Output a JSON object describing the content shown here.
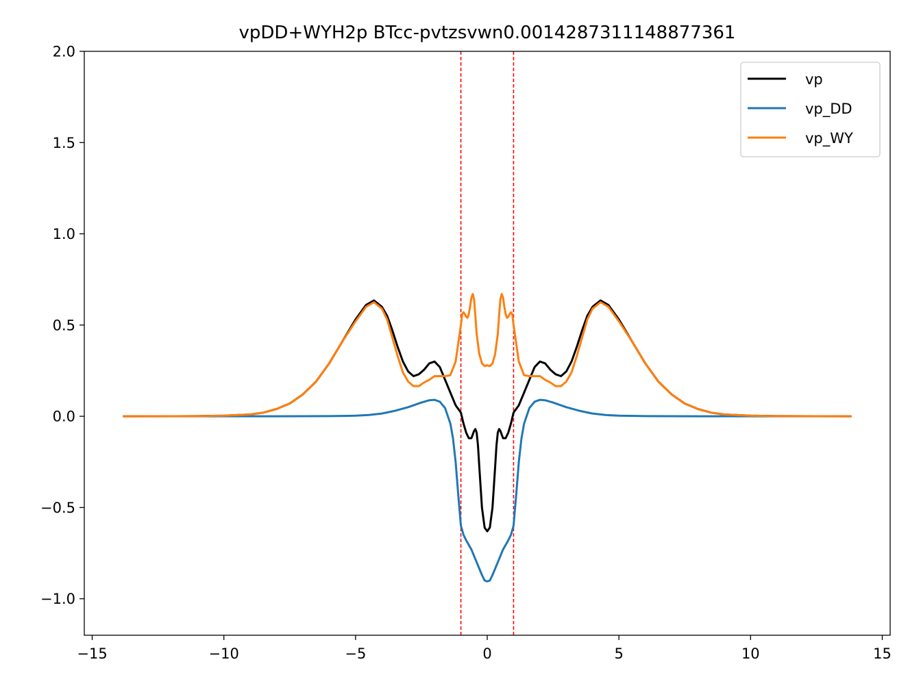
{
  "chart_data": {
    "type": "line",
    "title": "vpDD+WYH2p BTcc-pvtzsvwn0.0014287311148877361",
    "xlabel": "",
    "ylabel": "",
    "xlim": [
      -15.3,
      15.3
    ],
    "ylim": [
      -1.2,
      2.0
    ],
    "xticks": [
      -15,
      -10,
      -5,
      0,
      5,
      10,
      15
    ],
    "xtick_labels": [
      "−15",
      "−10",
      "−5",
      "0",
      "5",
      "10",
      "15"
    ],
    "yticks": [
      -1.0,
      -0.5,
      0.0,
      0.5,
      1.0,
      1.5,
      2.0
    ],
    "ytick_labels": [
      "−1.0",
      "−0.5",
      "0.0",
      "0.5",
      "1.0",
      "1.5",
      "2.0"
    ],
    "grid": false,
    "legend_position": "top-right",
    "vlines": [
      {
        "x": -1.0,
        "color": "#ff0000",
        "style": "dashed"
      },
      {
        "x": 1.0,
        "color": "#ff0000",
        "style": "dashed"
      }
    ],
    "series": [
      {
        "name": "vp",
        "color": "#000000",
        "x": [
          -13.8,
          -11,
          -10,
          -9,
          -8.5,
          -8,
          -7.5,
          -7,
          -6.5,
          -6,
          -5.5,
          -5,
          -4.6,
          -4.3,
          -4.0,
          -3.8,
          -3.6,
          -3.4,
          -3.2,
          -3.0,
          -2.8,
          -2.6,
          -2.4,
          -2.2,
          -2.0,
          -1.8,
          -1.6,
          -1.4,
          -1.2,
          -1.0,
          -0.9,
          -0.8,
          -0.7,
          -0.6,
          -0.55,
          -0.5,
          -0.45,
          -0.4,
          -0.35,
          -0.3,
          -0.2,
          -0.1,
          0.0,
          0.1,
          0.2,
          0.3,
          0.35,
          0.4,
          0.45,
          0.5,
          0.55,
          0.6,
          0.7,
          0.8,
          0.9,
          1.0,
          1.2,
          1.4,
          1.6,
          1.8,
          2.0,
          2.2,
          2.4,
          2.6,
          2.8,
          3.0,
          3.2,
          3.4,
          3.6,
          3.8,
          4.0,
          4.3,
          4.6,
          5,
          5.5,
          6,
          6.5,
          7,
          7.5,
          8,
          8.5,
          9,
          10,
          11,
          13.8
        ],
        "y": [
          0.0,
          0.001,
          0.003,
          0.01,
          0.02,
          0.04,
          0.07,
          0.12,
          0.19,
          0.29,
          0.41,
          0.53,
          0.61,
          0.635,
          0.6,
          0.55,
          0.47,
          0.38,
          0.3,
          0.245,
          0.22,
          0.23,
          0.255,
          0.29,
          0.3,
          0.27,
          0.2,
          0.13,
          0.06,
          0.02,
          -0.04,
          -0.09,
          -0.12,
          -0.12,
          -0.1,
          -0.08,
          -0.07,
          -0.09,
          -0.16,
          -0.28,
          -0.5,
          -0.61,
          -0.63,
          -0.61,
          -0.5,
          -0.28,
          -0.16,
          -0.09,
          -0.07,
          -0.08,
          -0.1,
          -0.12,
          -0.12,
          -0.09,
          -0.04,
          0.02,
          0.06,
          0.13,
          0.2,
          0.27,
          0.3,
          0.29,
          0.255,
          0.23,
          0.22,
          0.245,
          0.3,
          0.38,
          0.47,
          0.55,
          0.6,
          0.635,
          0.61,
          0.53,
          0.41,
          0.29,
          0.19,
          0.12,
          0.07,
          0.04,
          0.02,
          0.01,
          0.003,
          0.001,
          0.0
        ]
      },
      {
        "name": "vp_DD",
        "color": "#1f77b4",
        "x": [
          -13.8,
          -8,
          -6,
          -5,
          -4.5,
          -4,
          -3.5,
          -3,
          -2.5,
          -2.2,
          -2.0,
          -1.8,
          -1.6,
          -1.4,
          -1.3,
          -1.2,
          -1.1,
          -1.0,
          -0.9,
          -0.8,
          -0.6,
          -0.4,
          -0.2,
          -0.1,
          0.0,
          0.1,
          0.2,
          0.4,
          0.6,
          0.8,
          0.9,
          1.0,
          1.1,
          1.2,
          1.3,
          1.4,
          1.6,
          1.8,
          2.0,
          2.2,
          2.5,
          3,
          3.5,
          4,
          4.5,
          5,
          6,
          8,
          13.8
        ],
        "y": [
          0.0,
          0.0,
          0.001,
          0.003,
          0.007,
          0.015,
          0.03,
          0.05,
          0.075,
          0.088,
          0.09,
          0.08,
          0.045,
          -0.04,
          -0.12,
          -0.25,
          -0.43,
          -0.6,
          -0.65,
          -0.68,
          -0.73,
          -0.8,
          -0.87,
          -0.9,
          -0.905,
          -0.9,
          -0.87,
          -0.8,
          -0.73,
          -0.68,
          -0.65,
          -0.6,
          -0.43,
          -0.25,
          -0.12,
          -0.04,
          0.045,
          0.08,
          0.09,
          0.088,
          0.075,
          0.05,
          0.03,
          0.015,
          0.007,
          0.003,
          0.001,
          0.0,
          0.0
        ]
      },
      {
        "name": "vp_WY",
        "color": "#ff7f0e",
        "x": [
          -13.8,
          -11,
          -10,
          -9,
          -8.5,
          -8,
          -7.5,
          -7,
          -6.5,
          -6,
          -5.5,
          -5,
          -4.6,
          -4.3,
          -4.0,
          -3.8,
          -3.6,
          -3.4,
          -3.2,
          -3.0,
          -2.8,
          -2.6,
          -2.4,
          -2.2,
          -2.0,
          -1.8,
          -1.6,
          -1.4,
          -1.2,
          -1.1,
          -1.0,
          -0.95,
          -0.9,
          -0.85,
          -0.8,
          -0.75,
          -0.7,
          -0.65,
          -0.6,
          -0.55,
          -0.5,
          -0.45,
          -0.4,
          -0.3,
          -0.2,
          -0.1,
          0.0,
          0.1,
          0.2,
          0.3,
          0.4,
          0.45,
          0.5,
          0.55,
          0.6,
          0.65,
          0.7,
          0.75,
          0.8,
          0.85,
          0.9,
          0.95,
          1.0,
          1.1,
          1.2,
          1.4,
          1.6,
          1.8,
          2.0,
          2.2,
          2.4,
          2.6,
          2.8,
          3.0,
          3.2,
          3.4,
          3.6,
          3.8,
          4.0,
          4.3,
          4.6,
          5,
          5.5,
          6,
          6.5,
          7,
          7.5,
          8,
          8.5,
          9,
          10,
          11,
          13.8
        ],
        "y": [
          0.0,
          0.001,
          0.003,
          0.01,
          0.02,
          0.04,
          0.07,
          0.12,
          0.19,
          0.29,
          0.41,
          0.52,
          0.6,
          0.625,
          0.59,
          0.53,
          0.43,
          0.33,
          0.24,
          0.19,
          0.165,
          0.165,
          0.185,
          0.2,
          0.22,
          0.22,
          0.22,
          0.225,
          0.3,
          0.4,
          0.5,
          0.56,
          0.57,
          0.56,
          0.545,
          0.54,
          0.56,
          0.6,
          0.65,
          0.67,
          0.64,
          0.55,
          0.45,
          0.34,
          0.29,
          0.275,
          0.28,
          0.275,
          0.29,
          0.34,
          0.45,
          0.55,
          0.64,
          0.67,
          0.65,
          0.6,
          0.56,
          0.54,
          0.545,
          0.56,
          0.57,
          0.56,
          0.5,
          0.4,
          0.3,
          0.225,
          0.22,
          0.22,
          0.22,
          0.2,
          0.185,
          0.165,
          0.165,
          0.19,
          0.24,
          0.33,
          0.43,
          0.53,
          0.59,
          0.625,
          0.6,
          0.52,
          0.41,
          0.29,
          0.19,
          0.12,
          0.07,
          0.04,
          0.02,
          0.01,
          0.003,
          0.001,
          0.0
        ]
      }
    ]
  }
}
